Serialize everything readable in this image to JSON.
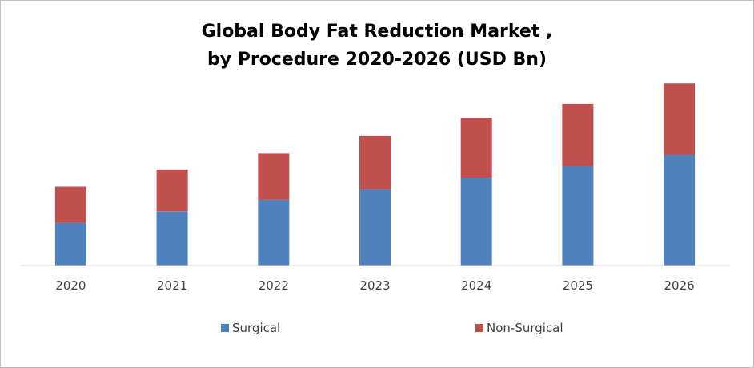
{
  "chart_data": {
    "type": "bar",
    "stacked": true,
    "title": "Global Body Fat Reduction Market , by Procedure 2020-2026 (USD Bn)",
    "title_lines": [
      "Global Body Fat Reduction Market ,",
      "by Procedure 2020-2026 (USD Bn)"
    ],
    "categories": [
      "2020",
      "2021",
      "2022",
      "2023",
      "2024",
      "2025",
      "2026"
    ],
    "series": [
      {
        "name": "Surgical",
        "color": "#4f81bd",
        "values": [
          52,
          66,
          80,
          93,
          107,
          121,
          135
        ]
      },
      {
        "name": "Non-Surgical",
        "color": "#c0504d",
        "values": [
          44,
          51,
          57,
          65,
          73,
          76,
          87
        ]
      }
    ],
    "ylim": [
      0,
      230
    ],
    "grid": false,
    "legend_position": "bottom"
  }
}
